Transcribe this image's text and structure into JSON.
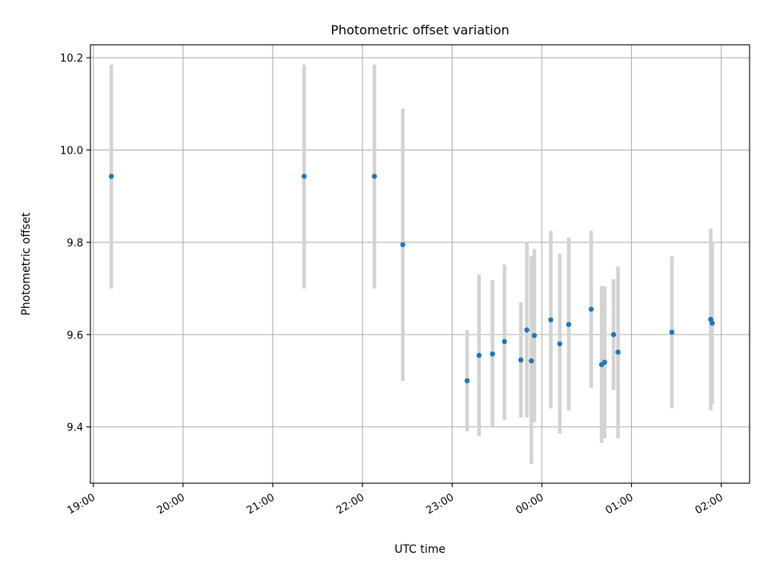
{
  "chart_data": {
    "type": "scatter",
    "title": "Photometric offset variation",
    "xlabel": "UTC time",
    "ylabel": "Photometric offset",
    "grid": true,
    "x_axis_type": "time",
    "xlim": [
      "18:58",
      "02:19"
    ],
    "ylim": [
      9.278,
      10.228
    ],
    "x_ticks": [
      "19:00",
      "20:00",
      "21:00",
      "22:00",
      "23:00",
      "00:00",
      "01:00",
      "02:00"
    ],
    "y_ticks": [
      "9.4",
      "9.6",
      "9.8",
      "10.0",
      "10.2"
    ],
    "colors": {
      "point": "#1f77b4",
      "error_bar": "#d3d3d3"
    },
    "points": [
      {
        "time": "19:12",
        "y": 9.943,
        "y_low": 9.7,
        "y_high": 10.185
      },
      {
        "time": "21:21",
        "y": 9.943,
        "y_low": 9.7,
        "y_high": 10.185
      },
      {
        "time": "22:08",
        "y": 9.943,
        "y_low": 9.7,
        "y_high": 10.185
      },
      {
        "time": "22:27",
        "y": 9.795,
        "y_low": 9.5,
        "y_high": 10.09
      },
      {
        "time": "23:10",
        "y": 9.5,
        "y_low": 9.39,
        "y_high": 9.61
      },
      {
        "time": "23:18",
        "y": 9.555,
        "y_low": 9.38,
        "y_high": 9.73
      },
      {
        "time": "23:27",
        "y": 9.558,
        "y_low": 9.4,
        "y_high": 9.718
      },
      {
        "time": "23:35",
        "y": 9.585,
        "y_low": 9.415,
        "y_high": 9.752
      },
      {
        "time": "23:46",
        "y": 9.545,
        "y_low": 9.42,
        "y_high": 9.67
      },
      {
        "time": "23:50",
        "y": 9.61,
        "y_low": 9.42,
        "y_high": 9.8
      },
      {
        "time": "23:53",
        "y": 9.543,
        "y_low": 9.32,
        "y_high": 9.77
      },
      {
        "time": "23:55",
        "y": 9.598,
        "y_low": 9.41,
        "y_high": 9.785
      },
      {
        "time": "00:06",
        "y": 9.632,
        "y_low": 9.44,
        "y_high": 9.825
      },
      {
        "time": "00:12",
        "y": 9.58,
        "y_low": 9.385,
        "y_high": 9.775
      },
      {
        "time": "00:18",
        "y": 9.622,
        "y_low": 9.435,
        "y_high": 9.81
      },
      {
        "time": "00:33",
        "y": 9.655,
        "y_low": 9.485,
        "y_high": 9.825
      },
      {
        "time": "00:40",
        "y": 9.535,
        "y_low": 9.365,
        "y_high": 9.705
      },
      {
        "time": "00:42",
        "y": 9.54,
        "y_low": 9.375,
        "y_high": 9.705
      },
      {
        "time": "00:48",
        "y": 9.6,
        "y_low": 9.48,
        "y_high": 9.72
      },
      {
        "time": "00:51",
        "y": 9.562,
        "y_low": 9.375,
        "y_high": 9.748
      },
      {
        "time": "01:27",
        "y": 9.605,
        "y_low": 9.44,
        "y_high": 9.77
      },
      {
        "time": "01:53",
        "y": 9.633,
        "y_low": 9.436,
        "y_high": 9.83
      },
      {
        "time": "01:54",
        "y": 9.625,
        "y_low": 9.45,
        "y_high": 9.8
      }
    ]
  }
}
